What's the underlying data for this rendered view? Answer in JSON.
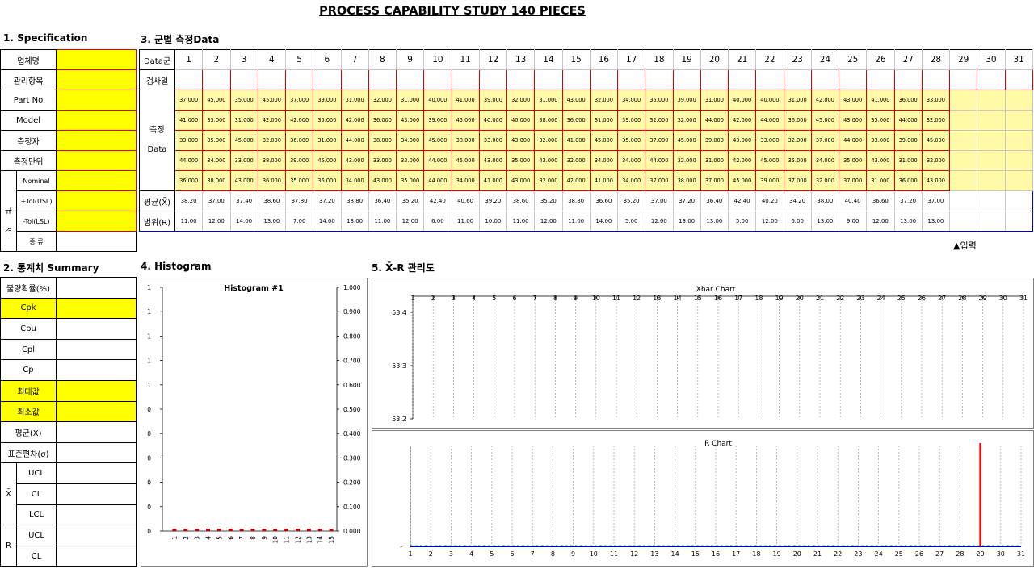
{
  "title": "PROCESS CAPABILITY STUDY 140 PIECES",
  "sections": {
    "spec": "1. Specification",
    "data": "3. 군별 측정Data",
    "summary": "2. 통계치 Summary",
    "histogram": "4. Histogram",
    "xr": "5. X̄-R 관리도"
  },
  "spec": {
    "company": "업체명",
    "item": "관리항목",
    "part_no": "Part No",
    "model": "Model",
    "measurer": "측정자",
    "unit": "측정단위",
    "nominal": "Nominal",
    "gyu": "규",
    "gyeok": "격",
    "tol_usl": "+Tol(USL)",
    "tol_lsl": "-Tol(LSL)",
    "kind": "종 류"
  },
  "data_table": {
    "group_label": "Data군",
    "date_label": "검사일",
    "meas_label_1": "측정",
    "meas_label_2": "Data",
    "mean_label": "평균(X̄)",
    "range_label": "범위(R)",
    "groups": [
      "1",
      "2",
      "3",
      "4",
      "5",
      "6",
      "7",
      "8",
      "9",
      "10",
      "11",
      "12",
      "13",
      "14",
      "15",
      "16",
      "17",
      "18",
      "19",
      "20",
      "21",
      "22",
      "23",
      "24",
      "25",
      "26",
      "27",
      "28",
      "29",
      "30",
      "31"
    ],
    "rows": [
      [
        "37.000",
        "45.000",
        "35.000",
        "45.000",
        "37.000",
        "39.000",
        "31.000",
        "32.000",
        "31.000",
        "40.000",
        "41.000",
        "39.000",
        "32.000",
        "31.000",
        "43.000",
        "32.000",
        "34.000",
        "35.000",
        "39.000",
        "31.000",
        "40.000",
        "40.000",
        "31.000",
        "42.000",
        "43.000",
        "41.000",
        "36.000",
        "33.000"
      ],
      [
        "41.000",
        "33.000",
        "31.000",
        "42.000",
        "42.000",
        "35.000",
        "42.000",
        "36.000",
        "43.000",
        "39.000",
        "45.000",
        "40.000",
        "40.000",
        "38.000",
        "36.000",
        "31.000",
        "39.000",
        "32.000",
        "32.000",
        "44.000",
        "42.000",
        "44.000",
        "36.000",
        "45.000",
        "43.000",
        "35.000",
        "44.000",
        "32.000"
      ],
      [
        "33.000",
        "35.000",
        "45.000",
        "32.000",
        "36.000",
        "31.000",
        "44.000",
        "38.000",
        "34.000",
        "45.000",
        "38.000",
        "33.000",
        "43.000",
        "32.000",
        "41.000",
        "45.000",
        "35.000",
        "37.000",
        "45.000",
        "39.000",
        "43.000",
        "33.000",
        "32.000",
        "37.000",
        "44.000",
        "33.000",
        "39.000",
        "45.000"
      ],
      [
        "44.000",
        "34.000",
        "33.000",
        "38.000",
        "39.000",
        "45.000",
        "43.000",
        "33.000",
        "33.000",
        "44.000",
        "45.000",
        "43.000",
        "35.000",
        "43.000",
        "32.000",
        "34.000",
        "34.000",
        "44.000",
        "32.000",
        "31.000",
        "42.000",
        "45.000",
        "35.000",
        "34.000",
        "35.000",
        "43.000",
        "31.000",
        "32.000"
      ],
      [
        "36.000",
        "38.000",
        "43.000",
        "36.000",
        "35.000",
        "36.000",
        "34.000",
        "43.000",
        "35.000",
        "44.000",
        "34.000",
        "41.000",
        "43.000",
        "32.000",
        "42.000",
        "41.000",
        "34.000",
        "37.000",
        "38.000",
        "37.000",
        "45.000",
        "39.000",
        "37.000",
        "32.000",
        "37.000",
        "31.000",
        "36.000",
        "43.000"
      ]
    ],
    "means": [
      "38.20",
      "37.00",
      "37.40",
      "38.60",
      "37.80",
      "37.20",
      "38.80",
      "36.40",
      "35.20",
      "42.40",
      "40.60",
      "39.20",
      "38.60",
      "35.20",
      "38.80",
      "36.60",
      "35.20",
      "37.00",
      "37.20",
      "36.40",
      "42.40",
      "40.20",
      "34.20",
      "38.00",
      "40.40",
      "36.60",
      "37.20",
      "37.00"
    ],
    "ranges": [
      "11.00",
      "12.00",
      "14.00",
      "13.00",
      "7.00",
      "14.00",
      "13.00",
      "11.00",
      "12.00",
      "6.00",
      "11.00",
      "10.00",
      "11.00",
      "12.00",
      "11.00",
      "14.00",
      "5.00",
      "12.00",
      "13.00",
      "13.00",
      "5.00",
      "12.00",
      "6.00",
      "13.00",
      "9.00",
      "12.00",
      "13.00",
      "13.00"
    ],
    "input_note": "▲입력"
  },
  "summary": {
    "defect": "불량확률(%)",
    "cpk": "Cpk",
    "cpu": "Cpu",
    "cpl": "Cpl",
    "cp": "Cp",
    "max": "최대값",
    "min": "최소값",
    "mean": "평균(X)",
    "std": "표준편차(σ)",
    "xbar": "X̄",
    "r": "R",
    "ucl": "UCL",
    "cl": "CL",
    "lcl": "LCL"
  },
  "histogram": {
    "title": "Histogram #1",
    "left_ticks": [
      "1",
      "1",
      "1",
      "1",
      "1",
      "0",
      "0",
      "0",
      "0",
      "0",
      "0"
    ],
    "right_ticks": [
      "1.000",
      "0.900",
      "0.800",
      "0.700",
      "0.600",
      "0.500",
      "0.400",
      "0.300",
      "0.200",
      "0.100",
      "0.000"
    ],
    "x_labels": [
      "1",
      "2",
      "3",
      "4",
      "5",
      "6",
      "7",
      "8",
      "9",
      "10",
      "11",
      "12",
      "13",
      "14",
      "15"
    ],
    "bar_color": "#c00000"
  },
  "xbar_chart": {
    "title": "Xbar Chart",
    "y_ticks": [
      "53.4",
      "53.3",
      "53.2"
    ],
    "x_labels": [
      "1",
      "2",
      "3",
      "4",
      "5",
      "6",
      "7",
      "8",
      "9",
      "10",
      "11",
      "12",
      "13",
      "14",
      "15",
      "16",
      "17",
      "18",
      "19",
      "20",
      "21",
      "22",
      "23",
      "24",
      "25",
      "26",
      "27",
      "28",
      "29",
      "30",
      "31"
    ]
  },
  "r_chart": {
    "title": "R Chart",
    "y_ticks": [
      "-"
    ],
    "x_labels": [
      "1",
      "2",
      "3",
      "4",
      "5",
      "6",
      "7",
      "8",
      "9",
      "10",
      "11",
      "12",
      "13",
      "14",
      "15",
      "16",
      "17",
      "18",
      "19",
      "20",
      "21",
      "22",
      "23",
      "24",
      "25",
      "26",
      "27",
      "28",
      "29",
      "30",
      "31"
    ],
    "marker_group": 29,
    "marker_color": "#ff0000",
    "line_color": "#0000cc"
  }
}
